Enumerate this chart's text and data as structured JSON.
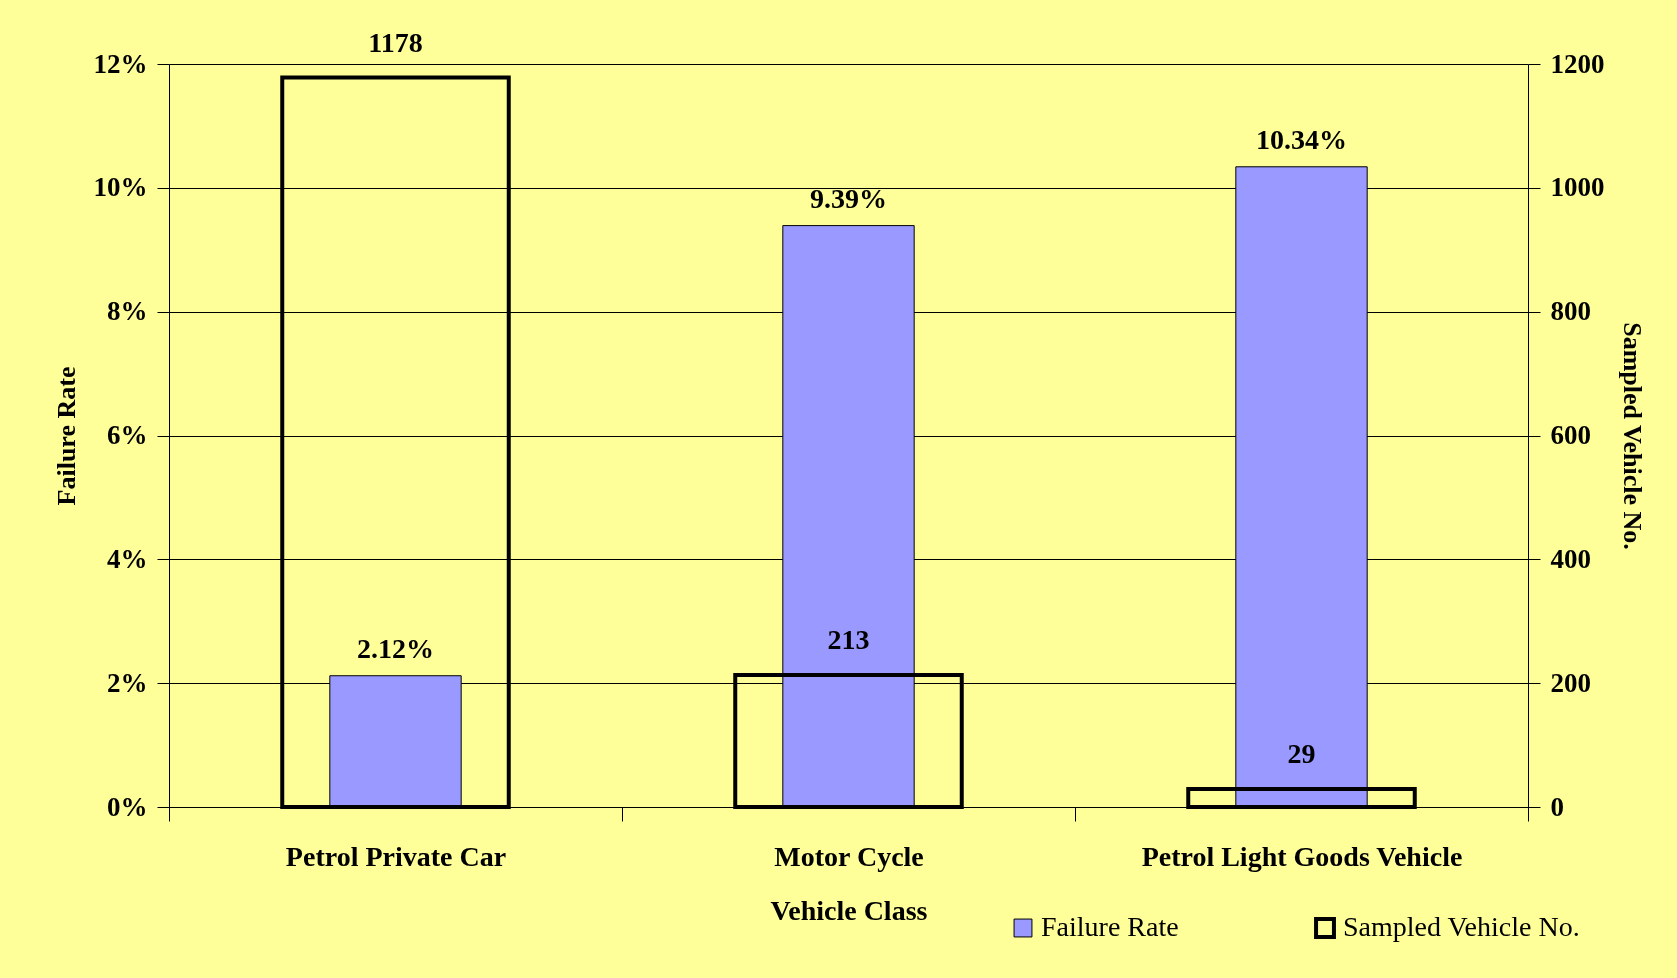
{
  "chart_data": {
    "type": "bar",
    "xlabel": "Vehicle Class",
    "ylabel": "Failure Rate",
    "y2label": "Sampled Vehicle No.",
    "categories": [
      "Petrol Private Car",
      "Motor Cycle",
      "Petrol Light Goods Vehicle"
    ],
    "series": [
      {
        "name": "Failure Rate",
        "color": "#9999ff",
        "values": [
          2.12,
          9.39,
          10.34
        ],
        "value_labels": [
          "2.12%",
          "9.39%",
          "10.34%"
        ]
      },
      {
        "name": "Sampled Vehicle No.",
        "color": "#000000",
        "axis": "y2",
        "values": [
          1178,
          213,
          29
        ],
        "value_labels": [
          "1178",
          "213",
          "29"
        ]
      }
    ],
    "ylim": [
      0,
      12
    ],
    "yticks": [
      {
        "value": 0,
        "label": "0%"
      },
      {
        "value": 2,
        "label": "2%"
      },
      {
        "value": 4,
        "label": "4%"
      },
      {
        "value": 6,
        "label": "6%"
      },
      {
        "value": 8,
        "label": "8%"
      },
      {
        "value": 10,
        "label": "10%"
      },
      {
        "value": 12,
        "label": "12%"
      }
    ],
    "y2lim": [
      0,
      1200
    ],
    "y2ticks": [
      0,
      200,
      400,
      600,
      800,
      1000,
      1200
    ],
    "grid": "y",
    "legend": "bottom right"
  }
}
